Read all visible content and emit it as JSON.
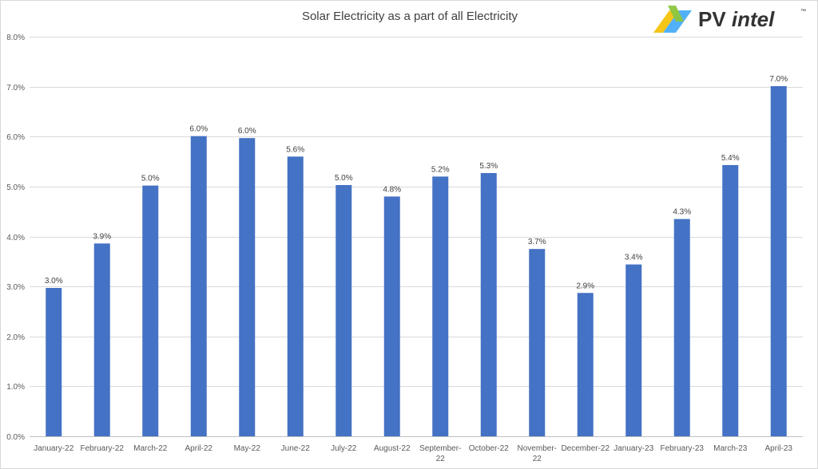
{
  "chart_data": {
    "type": "bar",
    "title": "Solar Electricity as a part of all Electricity",
    "categories": [
      "January-22",
      "February-22",
      "March-22",
      "April-22",
      "May-22",
      "June-22",
      "July-22",
      "August-22",
      "September-22",
      "October-22",
      "November-22",
      "December-22",
      "January-23",
      "February-23",
      "March-23",
      "April-23"
    ],
    "category_label_lines": [
      [
        "January-22"
      ],
      [
        "February-22"
      ],
      [
        "March-22"
      ],
      [
        "April-22"
      ],
      [
        "May-22"
      ],
      [
        "June-22"
      ],
      [
        "July-22"
      ],
      [
        "August-22"
      ],
      [
        "September-",
        "22"
      ],
      [
        "October-22"
      ],
      [
        "November-",
        "22"
      ],
      [
        "December-22"
      ],
      [
        "January-23"
      ],
      [
        "February-23"
      ],
      [
        "March-23"
      ],
      [
        "April-23"
      ]
    ],
    "values": [
      2.97,
      3.86,
      5.02,
      6.01,
      5.97,
      5.6,
      5.03,
      4.8,
      5.2,
      5.27,
      3.75,
      2.87,
      3.44,
      4.35,
      5.43,
      7.01
    ],
    "data_labels": [
      "3.0%",
      "3.9%",
      "5.0%",
      "6.0%",
      "6.0%",
      "5.6%",
      "5.0%",
      "4.8%",
      "5.2%",
      "5.3%",
      "3.7%",
      "2.9%",
      "3.4%",
      "4.3%",
      "5.4%",
      "7.0%"
    ],
    "ylim": [
      0,
      8
    ],
    "y_ticks": [
      0,
      1,
      2,
      3,
      4,
      5,
      6,
      7,
      8
    ],
    "y_tick_labels": [
      "0.0%",
      "1.0%",
      "2.0%",
      "3.0%",
      "4.0%",
      "5.0%",
      "6.0%",
      "7.0%",
      "8.0%"
    ],
    "xlabel": "",
    "ylabel": "",
    "grid": true,
    "legend": "none",
    "colors": {
      "bar": "#4472c4",
      "grid": "#d9d9d9",
      "axis": "#bfbfbf"
    }
  },
  "logo": {
    "brand_bold": "PV",
    "brand_italic": "intel",
    "tm": "™",
    "colors": {
      "yellow": "#f5c518",
      "blue": "#3fa9f5",
      "green": "#8cc63f"
    }
  }
}
